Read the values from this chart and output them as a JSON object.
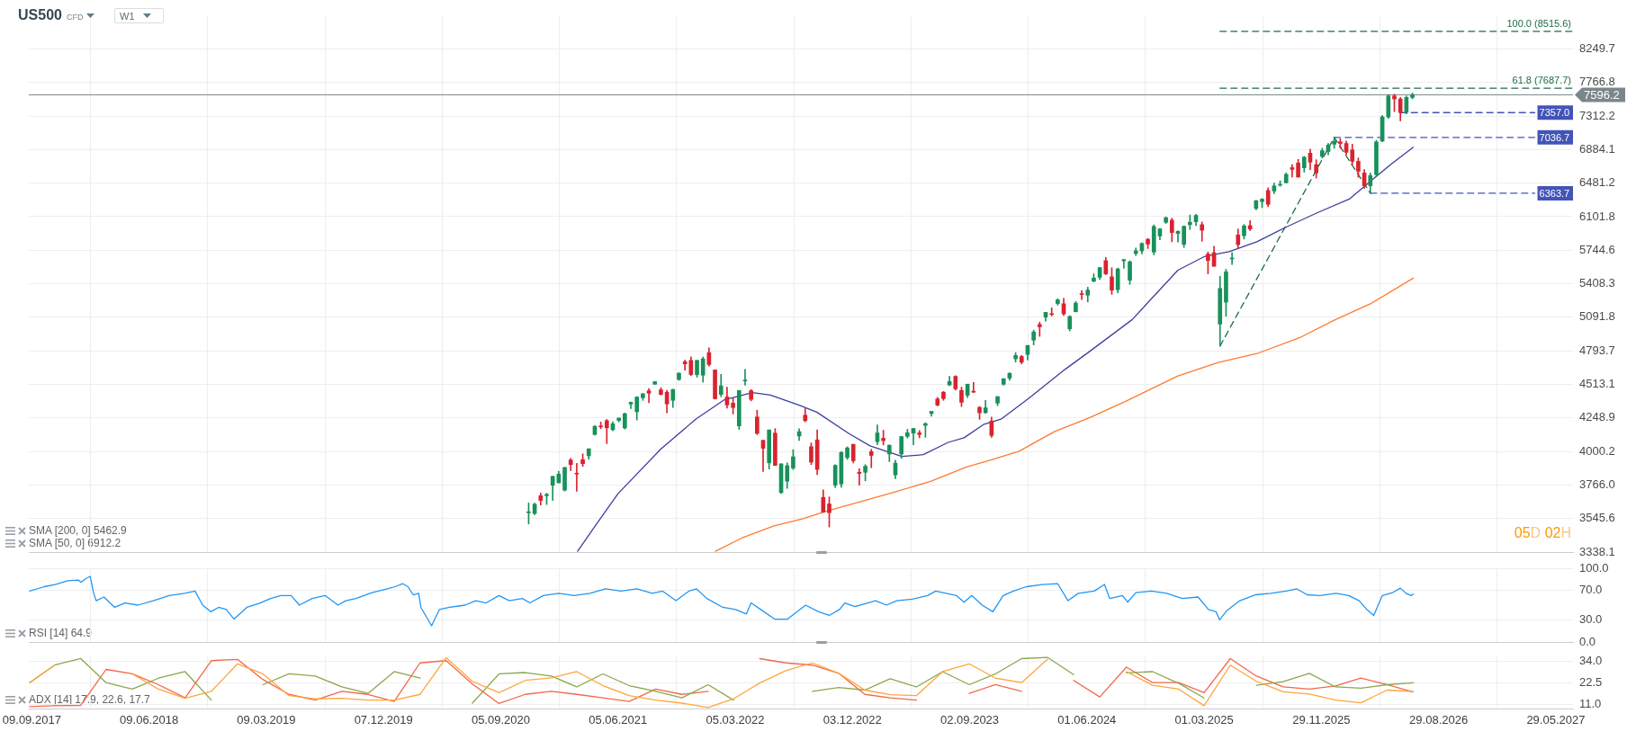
{
  "chart_data": [
    {
      "type": "candlestick",
      "title": "US500",
      "subtitle": "CFD",
      "x": [
        "2020-11-09",
        "2020-11-23",
        "2020-12-07",
        "2020-12-21",
        "2021-01-04",
        "2021-01-18",
        "2021-02-01",
        "2021-02-15",
        "2021-03-01",
        "2021-03-15",
        "2021-03-29",
        "2021-04-12",
        "2021-04-26",
        "2021-05-10",
        "2021-05-24",
        "2021-06-07",
        "2021-06-21",
        "2021-07-05",
        "2021-07-19",
        "2021-08-02",
        "2021-08-16",
        "2021-08-30",
        "2021-09-13",
        "2021-09-27",
        "2021-10-11",
        "2021-10-25",
        "2021-11-08",
        "2021-11-22",
        "2021-12-06",
        "2021-12-20",
        "2022-01-03",
        "2022-01-17",
        "2022-01-31",
        "2022-02-14",
        "2022-02-28",
        "2022-03-14",
        "2022-03-28",
        "2022-04-11",
        "2022-04-25",
        "2022-05-09",
        "2022-05-23",
        "2022-06-06",
        "2022-06-20",
        "2022-07-04",
        "2022-07-18",
        "2022-08-01",
        "2022-08-15",
        "2022-08-29",
        "2022-09-12",
        "2022-09-26",
        "2022-10-10",
        "2022-10-24",
        "2022-11-07",
        "2022-11-21",
        "2022-12-05",
        "2022-12-19",
        "2023-01-02",
        "2023-01-16",
        "2023-01-30",
        "2023-02-13",
        "2023-02-27",
        "2023-03-13",
        "2023-03-27",
        "2023-04-10",
        "2023-04-24",
        "2023-05-08",
        "2023-05-22",
        "2023-06-05",
        "2023-06-19",
        "2023-07-03",
        "2023-07-17",
        "2023-07-31",
        "2023-08-14",
        "2023-08-28",
        "2023-09-11",
        "2023-09-25",
        "2023-10-09",
        "2023-10-23",
        "2023-11-06",
        "2023-11-20",
        "2023-12-04",
        "2023-12-18",
        "2024-01-01",
        "2024-01-15",
        "2024-01-29",
        "2024-02-12",
        "2024-02-26",
        "2024-03-11",
        "2024-03-25",
        "2024-04-08",
        "2024-04-22",
        "2024-05-06",
        "2024-05-20",
        "2024-06-03",
        "2024-06-17",
        "2024-07-01",
        "2024-07-15",
        "2024-07-29",
        "2024-08-12",
        "2024-08-26",
        "2024-09-09",
        "2024-09-23",
        "2024-10-07",
        "2024-10-21",
        "2024-11-04",
        "2024-11-18",
        "2024-12-02",
        "2024-12-16",
        "2024-12-30",
        "2025-01-13",
        "2025-01-27",
        "2025-02-10",
        "2025-02-24",
        "2025-03-10",
        "2025-03-24",
        "2025-04-07",
        "2025-04-21",
        "2025-05-05",
        "2025-05-19",
        "2025-06-02",
        "2025-06-16",
        "2025-06-30",
        "2025-07-14",
        "2025-07-28",
        "2025-08-11",
        "2025-08-25",
        "2025-09-08",
        "2025-09-22",
        "2025-10-06",
        "2025-10-20",
        "2025-11-03",
        "2025-11-17",
        "2025-12-01",
        "2025-12-15",
        "2025-12-29",
        "2026-01-12",
        "2026-01-26",
        "2026-02-09",
        "2026-02-23",
        "2026-03-09",
        "2026-03-23",
        "2026-04-06",
        "2026-04-20",
        "2026-05-04",
        "2026-05-18",
        "2026-06-01",
        "2026-06-15",
        "2026-06-29"
      ],
      "ohlc": [
        [
          3583,
          3646,
          3511,
          3585
        ],
        [
          3578,
          3645,
          3570,
          3638
        ],
        [
          3694,
          3712,
          3633,
          3663
        ],
        [
          3694,
          3711,
          3636,
          3703
        ],
        [
          3764,
          3826,
          3663,
          3825
        ],
        [
          3781,
          3861,
          3780,
          3841
        ],
        [
          3731,
          3887,
          3725,
          3887
        ],
        [
          3939,
          3951,
          3864,
          3907
        ],
        [
          3842,
          3915,
          3723,
          3841
        ],
        [
          3942,
          3983,
          3894,
          3913
        ],
        [
          3969,
          4020,
          3944,
          4019
        ],
        [
          4124,
          4191,
          4119,
          4185
        ],
        [
          4185,
          4218,
          4167,
          4181
        ],
        [
          4228,
          4237,
          4057,
          4174
        ],
        [
          4160,
          4219,
          4152,
          4204
        ],
        [
          4230,
          4250,
          4219,
          4247
        ],
        [
          4173,
          4287,
          4164,
          4281
        ],
        [
          4356,
          4372,
          4320,
          4370
        ],
        [
          4296,
          4415,
          4233,
          4411
        ],
        [
          4406,
          4440,
          4385,
          4437
        ],
        [
          4461,
          4480,
          4367,
          4442
        ],
        [
          4514,
          4537,
          4513,
          4535
        ],
        [
          4469,
          4486,
          4428,
          4432
        ],
        [
          4450,
          4465,
          4288,
          4357
        ],
        [
          4385,
          4475,
          4329,
          4471
        ],
        [
          4553,
          4608,
          4546,
          4605
        ],
        [
          4701,
          4714,
          4630,
          4682
        ],
        [
          4712,
          4743,
          4585,
          4594
        ],
        [
          4592,
          4713,
          4572,
          4712
        ],
        [
          4588,
          4741,
          4531,
          4725
        ],
        [
          4778,
          4819,
          4663,
          4677
        ],
        [
          4632,
          4632,
          4395,
          4398
        ],
        [
          4432,
          4595,
          4414,
          4501
        ],
        [
          4412,
          4490,
          4324,
          4349
        ],
        [
          4363,
          4402,
          4279,
          4329
        ],
        [
          4188,
          4465,
          4162,
          4463
        ],
        [
          4541,
          4637,
          4506,
          4546
        ],
        [
          4462,
          4471,
          4381,
          4393
        ],
        [
          4256,
          4308,
          4124,
          4132
        ],
        [
          4081,
          4082,
          3859,
          4023
        ],
        [
          3919,
          4158,
          3876,
          4158
        ],
        [
          4134,
          4168,
          3900,
          3901
        ],
        [
          3715,
          3913,
          3709,
          3912
        ],
        [
          3792,
          3919,
          3743,
          3899
        ],
        [
          3883,
          4013,
          3872,
          3962
        ],
        [
          4113,
          4167,
          4080,
          4145
        ],
        [
          4270,
          4325,
          4219,
          4228
        ],
        [
          4035,
          4062,
          3907,
          3924
        ],
        [
          4084,
          4159,
          3837,
          3873
        ],
        [
          3683,
          3733,
          3585,
          3586
        ],
        [
          3640,
          3686,
          3492,
          3583
        ],
        [
          3765,
          3906,
          3749,
          3901
        ],
        [
          3773,
          4001,
          3751,
          3993
        ],
        [
          3956,
          4034,
          3943,
          4026
        ],
        [
          4052,
          4052,
          3918,
          3934
        ],
        [
          3853,
          3877,
          3765,
          3845
        ],
        [
          3853,
          3907,
          3794,
          3895
        ],
        [
          3999,
          4016,
          3885,
          3972
        ],
        [
          4071,
          4195,
          4049,
          4136
        ],
        [
          4096,
          4156,
          4047,
          4079
        ],
        [
          3982,
          4048,
          3928,
          4045
        ],
        [
          3835,
          3937,
          3809,
          3917
        ],
        [
          3982,
          4110,
          3951,
          4109
        ],
        [
          4110,
          4163,
          4098,
          4137
        ],
        [
          4134,
          4170,
          4049,
          4169
        ],
        [
          4136,
          4154,
          4099,
          4124
        ],
        [
          4192,
          4213,
          4103,
          4205
        ],
        [
          4283,
          4299,
          4261,
          4299
        ],
        [
          4396,
          4409,
          4341,
          4348
        ],
        [
          4450,
          4456,
          4385,
          4399
        ],
        [
          4508,
          4578,
          4503,
          4536
        ],
        [
          4578,
          4584,
          4467,
          4478
        ],
        [
          4464,
          4491,
          4336,
          4370
        ],
        [
          4426,
          4515,
          4407,
          4515
        ],
        [
          4458,
          4528,
          4448,
          4450
        ],
        [
          4330,
          4338,
          4238,
          4288
        ],
        [
          4289,
          4385,
          4284,
          4327
        ],
        [
          4225,
          4256,
          4103,
          4117
        ],
        [
          4364,
          4415,
          4343,
          4415
        ],
        [
          4514,
          4560,
          4506,
          4559
        ],
        [
          4564,
          4609,
          4546,
          4604
        ],
        [
          4725,
          4778,
          4697,
          4754
        ],
        [
          4745,
          4754,
          4682,
          4697
        ],
        [
          4763,
          4842,
          4714,
          4840
        ],
        [
          4887,
          4975,
          4845,
          4959
        ],
        [
          5026,
          5048,
          4920,
          5005
        ],
        [
          5093,
          5138,
          5057,
          5137
        ],
        [
          5123,
          5179,
          5104,
          5117
        ],
        [
          5219,
          5265,
          5204,
          5254
        ],
        [
          5217,
          5268,
          5107,
          5123
        ],
        [
          4987,
          5106,
          4968,
          5100
        ],
        [
          5142,
          5239,
          5142,
          5223
        ],
        [
          5305,
          5342,
          5256,
          5304
        ],
        [
          5298,
          5375,
          5234,
          5347
        ],
        [
          5432,
          5506,
          5427,
          5464
        ],
        [
          5471,
          5570,
          5448,
          5567
        ],
        [
          5638,
          5670,
          5497,
          5505
        ],
        [
          5476,
          5566,
          5306,
          5346
        ],
        [
          5351,
          5563,
          5321,
          5554
        ],
        [
          5635,
          5651,
          5561,
          5648
        ],
        [
          5442,
          5636,
          5402,
          5626
        ],
        [
          5711,
          5767,
          5690,
          5738
        ],
        [
          5737,
          5822,
          5707,
          5815
        ],
        [
          5858,
          5868,
          5762,
          5808
        ],
        [
          5725,
          6012,
          5696,
          5995
        ],
        [
          5893,
          5973,
          5853,
          5969
        ],
        [
          6040,
          6099,
          6027,
          6090
        ],
        [
          6063,
          6085,
          5832,
          5930
        ],
        [
          5920,
          5950,
          5829,
          5942
        ],
        [
          5805,
          6000,
          5773,
          5997
        ],
        [
          6014,
          6120,
          5962,
          6041
        ],
        [
          6046,
          6128,
          6004,
          6115
        ],
        [
          6014,
          6044,
          5838,
          5955
        ],
        [
          5705,
          5726,
          5505,
          5639
        ],
        [
          5719,
          5786,
          5581,
          5581
        ],
        [
          5030,
          5482,
          4835,
          5363
        ],
        [
          5232,
          5551,
          5101,
          5525
        ],
        [
          5655,
          5720,
          5598,
          5660
        ],
        [
          5905,
          5968,
          5768,
          5802
        ],
        [
          5896,
          6017,
          5861,
          6000
        ],
        [
          6004,
          6059,
          5952,
          5968
        ],
        [
          6193,
          6284,
          6177,
          6279
        ],
        [
          6269,
          6303,
          6201,
          6297
        ],
        [
          6396,
          6427,
          6212,
          6238
        ],
        [
          6389,
          6481,
          6360,
          6449
        ],
        [
          6457,
          6508,
          6444,
          6460
        ],
        [
          6485,
          6600,
          6482,
          6584
        ],
        [
          6664,
          6700,
          6551,
          6643
        ],
        [
          6720,
          6764,
          6550,
          6552
        ],
        [
          6662,
          6800,
          6610,
          6791
        ],
        [
          6840,
          6890,
          6640,
          6730
        ],
        [
          6700,
          6760,
          6540,
          6600
        ],
        [
          6800,
          6900,
          6780,
          6870
        ],
        [
          6860,
          6960,
          6820,
          6940
        ],
        [
          6950,
          7036.7,
          6900,
          6990
        ],
        [
          6980,
          7020,
          6900,
          6960
        ],
        [
          6960,
          6990,
          6820,
          6850
        ],
        [
          6880,
          6950,
          6700,
          6740
        ],
        [
          6740,
          6780,
          6550,
          6620
        ],
        [
          6600,
          6640,
          6420,
          6450
        ],
        [
          6450,
          6600,
          6363.7,
          6570
        ],
        [
          6580,
          7000,
          6560,
          6980
        ],
        [
          6990,
          7320,
          6980,
          7300
        ],
        [
          7300,
          7600,
          7280,
          7580
        ],
        [
          7580,
          7605,
          7370,
          7540
        ],
        [
          7540,
          7560,
          7250,
          7357
        ],
        [
          7360,
          7580,
          7340,
          7560
        ],
        [
          7560,
          7620,
          7540,
          7596.2
        ]
      ],
      "colors": [
        "#18915a",
        "#18915a",
        "#d9232e",
        "#18915a",
        "#18915a",
        "#18915a",
        "#18915a",
        "#d9232e",
        "#d9232e",
        "#d9232e",
        "#18915a",
        "#18915a",
        "#d9232e",
        "#d9232e",
        "#18915a",
        "#18915a",
        "#18915a",
        "#18915a",
        "#18915a",
        "#18915a",
        "#d9232e",
        "#18915a",
        "#d9232e",
        "#d9232e",
        "#18915a",
        "#18915a",
        "#d9232e",
        "#d9232e",
        "#18915a",
        "#18915a",
        "#d9232e",
        "#d9232e",
        "#18915a",
        "#d9232e",
        "#d9232e",
        "#18915a",
        "#18915a",
        "#d9232e",
        "#d9232e",
        "#d9232e",
        "#18915a",
        "#d9232e",
        "#18915a",
        "#18915a",
        "#18915a",
        "#18915a",
        "#d9232e",
        "#d9232e",
        "#d9232e",
        "#d9232e",
        "#d9232e",
        "#18915a",
        "#18915a",
        "#18915a",
        "#d9232e",
        "#d9232e",
        "#18915a",
        "#d9232e",
        "#18915a",
        "#d9232e",
        "#18915a",
        "#18915a",
        "#18915a",
        "#18915a",
        "#18915a",
        "#d9232e",
        "#18915a",
        "#18915a",
        "#d9232e",
        "#d9232e",
        "#18915a",
        "#d9232e",
        "#d9232e",
        "#18915a",
        "#d9232e",
        "#d9232e",
        "#18915a",
        "#d9232e",
        "#18915a",
        "#18915a",
        "#18915a",
        "#18915a",
        "#d9232e",
        "#18915a",
        "#18915a",
        "#d9232e",
        "#18915a",
        "#d9232e",
        "#18915a",
        "#d9232e",
        "#18915a",
        "#18915a",
        "#d9232e",
        "#18915a",
        "#18915a",
        "#18915a",
        "#d9232e",
        "#d9232e",
        "#18915a",
        "#18915a",
        "#18915a",
        "#18915a",
        "#18915a",
        "#d9232e",
        "#18915a",
        "#18915a",
        "#18915a",
        "#d9232e",
        "#18915a",
        "#18915a",
        "#18915a",
        "#18915a",
        "#d9232e",
        "#d9232e",
        "#d9232e",
        "#18915a",
        "#18915a",
        "#18915a",
        "#d9232e",
        "#18915a",
        "#d9232e",
        "#18915a",
        "#18915a",
        "#d9232e",
        "#18915a",
        "#18915a",
        "#18915a",
        "#d9232e",
        "#d9232e",
        "#18915a",
        "#d9232e",
        "#d9232e",
        "#18915a",
        "#18915a",
        "#18915a",
        "#d9232e",
        "#d9232e",
        "#d9232e",
        "#d9232e",
        "#d9232e",
        "#18915a",
        "#18915a",
        "#18915a",
        "#18915a",
        "#d9232e",
        "#d9232e",
        "#18915a",
        "#18915a"
      ],
      "series": [
        {
          "type": "line",
          "color": "#ff7a2f",
          "x": [
            "2022-01-18",
            "2022-03-20",
            "2022-06-03",
            "2022-08-10",
            "2022-10-06",
            "2022-12-28",
            "2023-03-12",
            "2023-06-03",
            "2023-08-24",
            "2023-10-21",
            "2023-12-26",
            "2024-03-17",
            "2024-06-08",
            "2024-08-29",
            "2024-12-30",
            "2025-04-03",
            "2025-07-02",
            "2025-10-10",
            "2025-12-31",
            "2026-03-23",
            "2026-07-01"
          ],
          "values": [
            3343,
            3423,
            3499,
            3545,
            3595,
            3660,
            3719,
            3791,
            3889,
            3939,
            4002,
            4145,
            4252,
            4376,
            4582,
            4695,
            4770,
            4909,
            5069,
            5216,
            5462.9
          ]
        },
        {
          "type": "line",
          "color": "#3c3f9e",
          "x": [
            "2021-03-03",
            "2021-04-13",
            "2021-06-05",
            "2021-09-12",
            "2021-12-03",
            "2022-02-08",
            "2022-04-14",
            "2022-05-26",
            "2022-08-01",
            "2022-09-11",
            "2022-11-25",
            "2023-01-13",
            "2023-03-28",
            "2023-05-17",
            "2023-07-14",
            "2023-08-20",
            "2023-10-04",
            "2023-11-14",
            "2024-01-19",
            "2024-04-11",
            "2024-06-08",
            "2024-09-14",
            "2024-12-30",
            "2025-03-01",
            "2025-04-28",
            "2025-07-02",
            "2025-09-06",
            "2025-11-20",
            "2026-02-02",
            "2026-03-23",
            "2026-05-12",
            "2026-07-01"
          ],
          "values": [
            3343,
            3499,
            3707,
            4015,
            4239,
            4390,
            4447,
            4427,
            4348,
            4293,
            4131,
            4041,
            3964,
            3977,
            4066,
            4100,
            4198,
            4239,
            4405,
            4636,
            4790,
            5069,
            5542,
            5678,
            5729,
            5833,
            5984,
            6146,
            6297,
            6502,
            6713,
            6912.2
          ]
        },
        {
          "type": "line",
          "color": "#1d6b47",
          "line_style": "dashed",
          "x": [
            "2025-04-07",
            "2025-12-29",
            "2026-03-23"
          ],
          "values": [
            4835,
            7036.7,
            6363.7
          ]
        },
        {
          "type": "line",
          "name": "100.0 (8515.6)",
          "color": "#1d6b47",
          "line_style": "dashed",
          "x": [
            "2025-04-07",
            "2027-07-08"
          ],
          "values": [
            8515.6,
            8515.6
          ]
        },
        {
          "type": "line",
          "name": "61.8 (7687.7)",
          "color": "#1d6b47",
          "line_style": "dashed",
          "x": [
            "2025-04-07",
            "2027-07-08"
          ],
          "values": [
            7687.7,
            7687.7
          ]
        },
        {
          "type": "line",
          "name": "7357.0",
          "color": "#4354b8",
          "line_style": "dashed",
          "x": [
            "2026-06-01",
            "2027-04-10"
          ],
          "values": [
            7357.0,
            7357.0
          ]
        },
        {
          "type": "line",
          "name": "7036.7",
          "color": "#4354b8",
          "line_style": "dashed",
          "x": [
            "2025-12-29",
            "2027-04-10"
          ],
          "values": [
            7036.7,
            7036.7
          ]
        },
        {
          "type": "line",
          "name": "6363.7",
          "color": "#4354b8",
          "line_style": "dashed",
          "x": [
            "2026-03-23",
            "2027-04-10"
          ],
          "values": [
            6363.7,
            6363.7
          ]
        }
      ],
      "ref_lines": [
        {
          "axis": "y",
          "value": 7596.2,
          "label": "7596.2",
          "color": "#7b868c"
        }
      ],
      "annotations": [
        "W1",
        "SMA [200, 0] 5462.9",
        "SMA [50, 0] 6912.2",
        "05D 02H"
      ],
      "xlim": [
        "2017-09-02",
        "2027-07-08"
      ],
      "xticks": [
        {
          "value": "2017-09-09",
          "label": null
        },
        {
          "value": "2018-06-09",
          "label": null
        },
        {
          "value": "2019-03-09",
          "label": null
        },
        {
          "value": "2019-12-07",
          "label": null
        },
        {
          "value": "2020-09-05",
          "label": null
        },
        {
          "value": "2021-06-05",
          "label": null
        },
        {
          "value": "2022-03-05",
          "label": null
        },
        {
          "value": "2022-12-03",
          "label": null
        },
        {
          "value": "2023-09-02",
          "label": null
        },
        {
          "value": "2024-06-01",
          "label": null
        },
        {
          "value": "2025-03-01",
          "label": null
        },
        {
          "value": "2025-11-29",
          "label": null
        },
        {
          "value": "2026-08-29",
          "label": null
        },
        {
          "value": "2027-05-29",
          "label": null
        }
      ],
      "ylim": [
        3338.1,
        8750
      ],
      "yticks": [
        3338.1,
        3545.6,
        {
          "value": 3766,
          "label": "3766.0"
        },
        4000.2,
        4248.9,
        4513.1,
        4793.7,
        5091.8,
        5408.3,
        5744.6,
        6101.8,
        6481.2,
        6884.1,
        7312.2,
        7766.8,
        8249.7
      ],
      "log": "y",
      "grid": true,
      "tick_labels": "y"
    },
    {
      "type": "line",
      "x": [
        "2017-09-04",
        "2017-10-08",
        "2017-11-02",
        "2017-12-02",
        "2017-12-26",
        "2018-01-02",
        "2018-01-13",
        "2018-01-23",
        "2018-01-31",
        "2018-02-06",
        "2018-02-24",
        "2018-03-21",
        "2018-04-14",
        "2018-05-14",
        "2018-06-19",
        "2018-07-26",
        "2018-08-31",
        "2018-09-24",
        "2018-10-12",
        "2018-10-31",
        "2018-11-18",
        "2018-12-06",
        "2018-12-24",
        "2019-01-23",
        "2019-02-23",
        "2019-03-19",
        "2019-04-12",
        "2019-05-06",
        "2019-05-25",
        "2019-06-24",
        "2019-07-24",
        "2019-08-23",
        "2019-09-10",
        "2019-10-04",
        "2019-11-10",
        "2019-12-16",
        "2020-01-03",
        "2020-01-21",
        "2020-02-02",
        "2020-02-14",
        "2020-02-27",
        "2020-03-03",
        "2020-03-28",
        "2020-04-15",
        "2020-05-09",
        "2020-06-14",
        "2020-07-09",
        "2020-08-02",
        "2020-09-01",
        "2020-09-25",
        "2020-10-25",
        "2020-11-12",
        "2020-12-13",
        "2021-01-18",
        "2021-02-23",
        "2021-04-01",
        "2021-05-07",
        "2021-06-12",
        "2021-07-19",
        "2021-08-24",
        "2021-09-17",
        "2021-10-18",
        "2021-11-17",
        "2021-12-05",
        "2021-12-29",
        "2022-02-04",
        "2022-03-06",
        "2022-03-31",
        "2022-04-11",
        "2022-05-11",
        "2022-06-05",
        "2022-07-05",
        "2022-08-16",
        "2022-09-15",
        "2022-10-10",
        "2022-11-03",
        "2022-11-15",
        "2022-12-09",
        "2023-01-02",
        "2023-01-26",
        "2023-02-20",
        "2023-03-16",
        "2023-04-21",
        "2023-05-27",
        "2023-06-15",
        "2023-07-09",
        "2023-08-02",
        "2023-08-20",
        "2023-09-07",
        "2023-10-01",
        "2023-10-26",
        "2023-11-19",
        "2023-12-13",
        "2024-01-12",
        "2024-02-18",
        "2024-03-25",
        "2024-04-18",
        "2024-05-12",
        "2024-06-18",
        "2024-07-12",
        "2024-07-24",
        "2024-08-23",
        "2024-09-04",
        "2024-09-23",
        "2024-10-29",
        "2024-12-04",
        "2025-01-09",
        "2025-02-15",
        "2025-03-11",
        "2025-03-29",
        "2025-04-06",
        "2025-04-22",
        "2025-05-23",
        "2025-06-28",
        "2025-08-03",
        "2025-09-08",
        "2025-10-03",
        "2025-10-27",
        "2025-11-26",
        "2026-01-02",
        "2026-02-01",
        "2026-02-25",
        "2026-03-15",
        "2026-03-31",
        "2026-04-20",
        "2026-05-14",
        "2026-06-01",
        "2026-06-14",
        "2026-06-26",
        "2026-07-01"
      ],
      "series": [
        {
          "color": "#2196f3",
          "values": [
            69,
            75,
            78,
            83,
            84,
            81,
            86,
            89,
            66,
            56,
            61,
            47,
            53,
            50,
            56,
            63,
            66,
            69,
            50,
            41,
            47,
            44,
            31,
            47,
            53,
            59,
            63,
            63,
            50,
            59,
            63,
            50,
            56,
            59,
            67,
            72,
            75,
            79,
            75,
            64,
            66,
            47,
            22,
            44,
            47,
            50,
            56,
            53,
            63,
            56,
            59,
            53,
            63,
            66,
            63,
            66,
            72,
            69,
            72,
            66,
            69,
            56,
            69,
            72,
            59,
            47,
            44,
            38,
            53,
            41,
            31,
            31,
            50,
            41,
            36,
            44,
            53,
            48,
            52,
            56,
            50,
            56,
            58,
            63,
            69,
            66,
            63,
            54,
            63,
            50,
            41,
            63,
            69,
            75,
            78,
            79,
            56,
            66,
            69,
            78,
            59,
            63,
            54,
            67,
            69,
            66,
            59,
            61,
            44,
            41,
            30,
            42,
            56,
            64,
            66,
            69,
            72,
            64,
            63,
            66,
            63,
            56,
            44,
            36,
            63,
            67,
            73,
            66,
            63,
            64.9
          ]
        }
      ],
      "annotations": [
        "RSI [14] 64.9"
      ],
      "xlim": [
        "2017-09-02",
        "2027-07-08"
      ],
      "xticks": [
        {
          "value": "2017-09-09",
          "label": null
        },
        {
          "value": "2018-06-09",
          "label": null
        },
        {
          "value": "2019-03-09",
          "label": null
        },
        {
          "value": "2019-12-07",
          "label": null
        },
        {
          "value": "2020-09-05",
          "label": null
        },
        {
          "value": "2021-06-05",
          "label": null
        },
        {
          "value": "2022-03-05",
          "label": null
        },
        {
          "value": "2022-12-03",
          "label": null
        },
        {
          "value": "2023-09-02",
          "label": null
        },
        {
          "value": "2024-06-01",
          "label": null
        },
        {
          "value": "2025-03-01",
          "label": null
        },
        {
          "value": "2025-11-29",
          "label": null
        },
        {
          "value": "2026-08-29",
          "label": null
        },
        {
          "value": "2027-05-29",
          "label": null
        }
      ],
      "ylim": [
        0,
        100
      ],
      "yticks": [
        {
          "value": 0,
          "label": "0.0"
        },
        {
          "value": 30,
          "label": "30.0"
        },
        {
          "value": 70,
          "label": "70.0"
        },
        {
          "value": 100,
          "label": "100.0"
        }
      ],
      "grid": true,
      "tick_labels": "y"
    },
    {
      "type": "line",
      "x": [
        "2017-09-04",
        "2017-11-01",
        "2018-01-01",
        "2018-03-01",
        "2018-05-01",
        "2018-07-01",
        "2018-09-01",
        "2018-11-01",
        "2019-01-01",
        "2019-03-01",
        "2019-05-01",
        "2019-07-01",
        "2019-09-01",
        "2019-11-01",
        "2020-01-01",
        "2020-03-01",
        "2020-05-01",
        "2020-07-01",
        "2020-09-01",
        "2020-11-01",
        "2021-01-01",
        "2021-03-01",
        "2021-05-01",
        "2021-07-01",
        "2021-09-01",
        "2021-11-01",
        "2022-01-01",
        "2022-03-01",
        "2022-05-01",
        "2022-07-01",
        "2022-09-01",
        "2022-11-01",
        "2023-01-01",
        "2023-03-01",
        "2023-05-01",
        "2023-07-01",
        "2023-09-01",
        "2023-11-01",
        "2024-01-01",
        "2024-03-01",
        "2024-05-01",
        "2024-07-01",
        "2024-09-01",
        "2024-11-01",
        "2025-01-01",
        "2025-03-01",
        "2025-05-01",
        "2025-07-01",
        "2025-09-01",
        "2025-11-01",
        "2026-01-01",
        "2026-03-01",
        "2026-05-01",
        "2026-07-01"
      ],
      "series": [
        {
          "color": "#ffa53c",
          "values": [
            22.7,
            32.1,
            null,
            null,
            27.4,
            19.2,
            14.3,
            18.0,
            32.8,
            27.4,
            15.7,
            14.0,
            14.3,
            13.3,
            13.3,
            16.4,
            36.1,
            23.4,
            17.3,
            23.9,
            25.3,
            28.6,
            21.1,
            15.7,
            13.3,
            11.7,
            9.3,
            14.0,
            22.5,
            29.1,
            33.3,
            27.7,
            18.7,
            16.2,
            15.7,
            28.6,
            32.8,
            25.1,
            22.7,
            35.2,
            null,
            null,
            28.6,
            21.3,
            19.2,
            10.3,
            32.1,
            23.4,
            17.8,
            16.6,
            13.3,
            11.9,
            18.7,
            17.9
          ]
        },
        {
          "color": "#8aa84a",
          "values": [
            22.7,
            32.1,
            35.6,
            22.7,
            19.2,
            25.1,
            28.6,
            13.3,
            null,
            21.6,
            27.4,
            26.2,
            20.4,
            16.9,
            28.6,
            25.1,
            null,
            11.7,
            27.4,
            28.1,
            26.2,
            20.4,
            27.4,
            21.1,
            18.0,
            14.5,
            21.6,
            13.3,
            null,
            null,
            18.0,
            20.1,
            18.7,
            24.8,
            20.4,
            28.6,
            21.6,
            27.4,
            35.6,
            36.3,
            27.0,
            null,
            27.9,
            28.6,
            22.3,
            14.5,
            null,
            21.3,
            23.2,
            27.7,
            20.4,
            19.7,
            21.6,
            22.6
          ]
        },
        {
          "color": "#f2684a",
          "values": [
            9.8,
            10.3,
            10.5,
            29.8,
            27.4,
            21.6,
            14.5,
            34.5,
            35.2,
            24.4,
            16.4,
            13.3,
            18.0,
            16.4,
            12.6,
            33.3,
            34.5,
            22.0,
            11.5,
            16.4,
            18.0,
            16.4,
            14.5,
            12.6,
            19.2,
            16.4,
            18.0,
            null,
            35.6,
            33.3,
            32.1,
            27.7,
            16.4,
            14.5,
            13.3,
            null,
            16.9,
            21.6,
            18.0,
            null,
            23.9,
            15.0,
            31.0,
            22.7,
            22.7,
            17.3,
            35.6,
            26.2,
            20.4,
            19.2,
            20.9,
            25.1,
            21.6,
            17.7
          ]
        }
      ],
      "annotations": [
        "ADX [14] 17.9, 22.6, 17.7"
      ],
      "xlim": [
        "2017-09-02",
        "2027-07-08"
      ],
      "xticks": [
        {
          "value": "2017-09-09",
          "label": "09.09.2017"
        },
        {
          "value": "2018-06-09",
          "label": "09.06.2018"
        },
        {
          "value": "2019-03-09",
          "label": "09.03.2019"
        },
        {
          "value": "2019-12-07",
          "label": "07.12.2019"
        },
        {
          "value": "2020-09-05",
          "label": "05.09.2020"
        },
        {
          "value": "2021-06-05",
          "label": "05.06.2021"
        },
        {
          "value": "2022-03-05",
          "label": "05.03.2022"
        },
        {
          "value": "2022-12-03",
          "label": "03.12.2022"
        },
        {
          "value": "2023-09-02",
          "label": "02.09.2023"
        },
        {
          "value": "2024-06-01",
          "label": "01.06.2024"
        },
        {
          "value": "2025-03-01",
          "label": "01.03.2025"
        },
        {
          "value": "2025-11-29",
          "label": "29.11.2025"
        },
        {
          "value": "2026-08-29",
          "label": "29.08.2026"
        },
        {
          "value": "2027-05-29",
          "label": "29.05.2027"
        }
      ],
      "ylim": [
        8.8,
        36.8
      ],
      "yticks": [
        {
          "value": 11,
          "label": "11.0"
        },
        {
          "value": 22.5,
          "label": "22.5"
        },
        {
          "value": 34,
          "label": "34.0"
        }
      ],
      "grid": true
    }
  ]
}
